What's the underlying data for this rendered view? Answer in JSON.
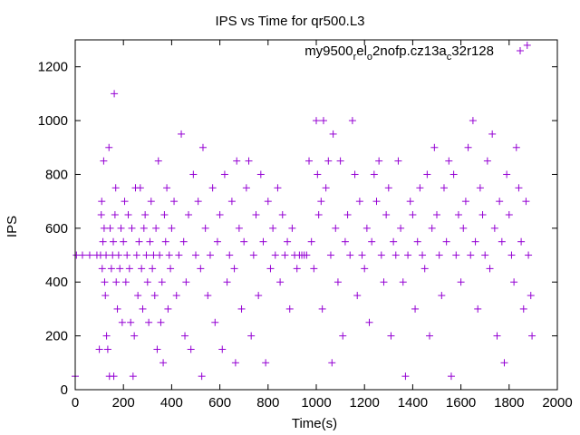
{
  "chart_data": {
    "type": "scatter",
    "title": "IPS vs Time for qr500.L3",
    "xlabel": "Time(s)",
    "ylabel": "IPS",
    "xlim": [
      0,
      2000
    ],
    "ylim": [
      0,
      1300
    ],
    "xticks": [
      "0",
      "200",
      "400",
      "600",
      "800",
      "1000",
      "1200",
      "1400",
      "1600",
      "1800",
      "2000"
    ],
    "yticks": [
      "0",
      "200",
      "400",
      "600",
      "800",
      "1000",
      "1200"
    ],
    "grid": false,
    "legend_position": "top-right",
    "marker": "plus",
    "series": [
      {
        "name_parts": [
          "my9500",
          "r",
          "el",
          "o",
          "2nofp.cz13a",
          "c",
          "32r128"
        ],
        "color": "#9400d3",
        "points": [
          [
            0,
            50
          ],
          [
            5,
            500
          ],
          [
            30,
            500
          ],
          [
            60,
            500
          ],
          [
            90,
            500
          ],
          [
            100,
            150
          ],
          [
            105,
            500
          ],
          [
            108,
            650
          ],
          [
            110,
            700
          ],
          [
            112,
            450
          ],
          [
            115,
            550
          ],
          [
            118,
            850
          ],
          [
            120,
            600
          ],
          [
            122,
            400
          ],
          [
            125,
            350
          ],
          [
            128,
            500
          ],
          [
            130,
            200
          ],
          [
            135,
            150
          ],
          [
            140,
            900
          ],
          [
            142,
            50
          ],
          [
            145,
            600
          ],
          [
            150,
            450
          ],
          [
            155,
            500
          ],
          [
            158,
            550
          ],
          [
            160,
            50
          ],
          [
            162,
            1100
          ],
          [
            165,
            650
          ],
          [
            168,
            750
          ],
          [
            170,
            400
          ],
          [
            175,
            300
          ],
          [
            180,
            500
          ],
          [
            185,
            450
          ],
          [
            190,
            600
          ],
          [
            195,
            250
          ],
          [
            200,
            550
          ],
          [
            205,
            700
          ],
          [
            210,
            400
          ],
          [
            215,
            500
          ],
          [
            220,
            650
          ],
          [
            225,
            450
          ],
          [
            230,
            250
          ],
          [
            235,
            600
          ],
          [
            240,
            50
          ],
          [
            245,
            200
          ],
          [
            250,
            750
          ],
          [
            255,
            500
          ],
          [
            260,
            350
          ],
          [
            265,
            550
          ],
          [
            270,
            750
          ],
          [
            275,
            450
          ],
          [
            280,
            300
          ],
          [
            285,
            600
          ],
          [
            290,
            650
          ],
          [
            295,
            500
          ],
          [
            300,
            400
          ],
          [
            305,
            250
          ],
          [
            310,
            550
          ],
          [
            315,
            700
          ],
          [
            320,
            450
          ],
          [
            325,
            500
          ],
          [
            330,
            350
          ],
          [
            335,
            600
          ],
          [
            340,
            150
          ],
          [
            345,
            850
          ],
          [
            350,
            500
          ],
          [
            355,
            250
          ],
          [
            360,
            400
          ],
          [
            365,
            100
          ],
          [
            370,
            650
          ],
          [
            375,
            550
          ],
          [
            380,
            750
          ],
          [
            385,
            300
          ],
          [
            390,
            500
          ],
          [
            395,
            450
          ],
          [
            400,
            600
          ],
          [
            410,
            700
          ],
          [
            420,
            350
          ],
          [
            430,
            500
          ],
          [
            440,
            950
          ],
          [
            450,
            550
          ],
          [
            455,
            200
          ],
          [
            460,
            400
          ],
          [
            470,
            650
          ],
          [
            480,
            150
          ],
          [
            490,
            800
          ],
          [
            500,
            500
          ],
          [
            510,
            700
          ],
          [
            520,
            450
          ],
          [
            525,
            50
          ],
          [
            530,
            900
          ],
          [
            540,
            600
          ],
          [
            550,
            350
          ],
          [
            560,
            500
          ],
          [
            570,
            750
          ],
          [
            580,
            250
          ],
          [
            590,
            550
          ],
          [
            600,
            650
          ],
          [
            610,
            150
          ],
          [
            620,
            800
          ],
          [
            630,
            400
          ],
          [
            640,
            500
          ],
          [
            650,
            700
          ],
          [
            660,
            450
          ],
          [
            665,
            100
          ],
          [
            670,
            850
          ],
          [
            680,
            600
          ],
          [
            690,
            300
          ],
          [
            700,
            550
          ],
          [
            710,
            750
          ],
          [
            720,
            850
          ],
          [
            730,
            200
          ],
          [
            740,
            500
          ],
          [
            750,
            650
          ],
          [
            760,
            350
          ],
          [
            770,
            800
          ],
          [
            780,
            550
          ],
          [
            790,
            100
          ],
          [
            800,
            700
          ],
          [
            810,
            450
          ],
          [
            820,
            600
          ],
          [
            830,
            500
          ],
          [
            840,
            750
          ],
          [
            850,
            400
          ],
          [
            860,
            650
          ],
          [
            870,
            500
          ],
          [
            880,
            550
          ],
          [
            890,
            300
          ],
          [
            900,
            600
          ],
          [
            910,
            500
          ],
          [
            920,
            450
          ],
          [
            930,
            500
          ],
          [
            940,
            500
          ],
          [
            950,
            500
          ],
          [
            960,
            500
          ],
          [
            970,
            850
          ],
          [
            980,
            550
          ],
          [
            990,
            450
          ],
          [
            1000,
            1000
          ],
          [
            1005,
            800
          ],
          [
            1010,
            650
          ],
          [
            1020,
            700
          ],
          [
            1025,
            300
          ],
          [
            1030,
            1000
          ],
          [
            1040,
            750
          ],
          [
            1050,
            850
          ],
          [
            1060,
            500
          ],
          [
            1065,
            100
          ],
          [
            1070,
            950
          ],
          [
            1080,
            600
          ],
          [
            1090,
            400
          ],
          [
            1100,
            850
          ],
          [
            1110,
            200
          ],
          [
            1120,
            550
          ],
          [
            1130,
            650
          ],
          [
            1140,
            500
          ],
          [
            1150,
            1000
          ],
          [
            1160,
            800
          ],
          [
            1170,
            350
          ],
          [
            1180,
            700
          ],
          [
            1190,
            500
          ],
          [
            1200,
            450
          ],
          [
            1210,
            600
          ],
          [
            1220,
            250
          ],
          [
            1230,
            550
          ],
          [
            1240,
            800
          ],
          [
            1250,
            700
          ],
          [
            1260,
            850
          ],
          [
            1270,
            500
          ],
          [
            1280,
            400
          ],
          [
            1290,
            650
          ],
          [
            1300,
            750
          ],
          [
            1310,
            200
          ],
          [
            1320,
            550
          ],
          [
            1330,
            500
          ],
          [
            1340,
            850
          ],
          [
            1350,
            600
          ],
          [
            1360,
            400
          ],
          [
            1370,
            50
          ],
          [
            1380,
            500
          ],
          [
            1390,
            700
          ],
          [
            1400,
            650
          ],
          [
            1410,
            300
          ],
          [
            1420,
            550
          ],
          [
            1430,
            750
          ],
          [
            1440,
            500
          ],
          [
            1450,
            450
          ],
          [
            1460,
            800
          ],
          [
            1470,
            200
          ],
          [
            1480,
            600
          ],
          [
            1490,
            900
          ],
          [
            1500,
            650
          ],
          [
            1510,
            500
          ],
          [
            1520,
            350
          ],
          [
            1530,
            750
          ],
          [
            1540,
            550
          ],
          [
            1550,
            850
          ],
          [
            1560,
            50
          ],
          [
            1570,
            800
          ],
          [
            1580,
            500
          ],
          [
            1590,
            650
          ],
          [
            1600,
            400
          ],
          [
            1610,
            600
          ],
          [
            1620,
            700
          ],
          [
            1630,
            900
          ],
          [
            1640,
            500
          ],
          [
            1650,
            1000
          ],
          [
            1660,
            550
          ],
          [
            1670,
            300
          ],
          [
            1680,
            750
          ],
          [
            1690,
            650
          ],
          [
            1700,
            500
          ],
          [
            1710,
            850
          ],
          [
            1720,
            450
          ],
          [
            1730,
            950
          ],
          [
            1740,
            600
          ],
          [
            1750,
            200
          ],
          [
            1760,
            700
          ],
          [
            1770,
            550
          ],
          [
            1780,
            100
          ],
          [
            1790,
            800
          ],
          [
            1800,
            650
          ],
          [
            1810,
            500
          ],
          [
            1820,
            400
          ],
          [
            1830,
            900
          ],
          [
            1840,
            750
          ],
          [
            1850,
            550
          ],
          [
            1860,
            300
          ],
          [
            1870,
            700
          ],
          [
            1875,
            1280
          ],
          [
            1880,
            500
          ],
          [
            1890,
            350
          ],
          [
            1895,
            200
          ]
        ]
      }
    ]
  }
}
